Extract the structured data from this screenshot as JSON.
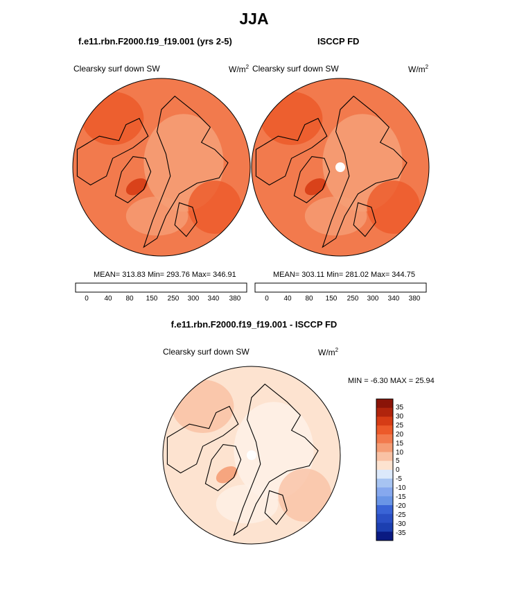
{
  "figure": {
    "season_title": "JJA",
    "left_panel_title": "f.e11.rbn.F2000.f19_f19.001 (yrs 2-5)",
    "right_panel_title": "ISCCP FD",
    "diff_panel_title": "f.e11.rbn.F2000.f19_f19.001 - ISCCP FD"
  },
  "chart_data": [
    {
      "type": "heatmap",
      "projection": "north-polar-stereographic",
      "title": "f.e11.rbn.F2000.f19_f19.001 (yrs 2-5)",
      "variable_label": "Clearsky surf down SW",
      "units_base": "W/m",
      "units_exp": "2",
      "stats": "MEAN= 313.83  Min= 293.76  Max= 346.91",
      "stats_values": {
        "mean": 313.83,
        "min": 293.76,
        "max": 346.91
      },
      "colorbar": {
        "orientation": "horizontal",
        "tick_labels": [
          "0",
          "40",
          "80",
          "150",
          "250",
          "300",
          "340",
          "380"
        ],
        "colors": [
          "#0a1a82",
          "#1c3fb0",
          "#3a64d6",
          "#6a95e6",
          "#a7c4f2",
          "#dce9fb",
          "#fde3d0",
          "#f9c2a5",
          "#f59d75",
          "#f27a4d",
          "#ec5a2a",
          "#d63c15",
          "#b0240c",
          "#8a1408"
        ]
      },
      "field_colors": {
        "base": "#f27a4d",
        "light": "#f59d75",
        "dark": "#ec5a2a",
        "darkest": "#d63c15"
      }
    },
    {
      "type": "heatmap",
      "projection": "north-polar-stereographic",
      "title": "ISCCP FD",
      "variable_label": "Clearsky surf down SW",
      "units_base": "W/m",
      "units_exp": "2",
      "stats": "MEAN= 303.11  Min= 281.02  Max= 344.75",
      "stats_values": {
        "mean": 303.11,
        "min": 281.02,
        "max": 344.75
      },
      "colorbar": {
        "orientation": "horizontal",
        "tick_labels": [
          "0",
          "40",
          "80",
          "150",
          "250",
          "300",
          "340",
          "380"
        ],
        "colors": [
          "#0a1a82",
          "#1c3fb0",
          "#3a64d6",
          "#6a95e6",
          "#a7c4f2",
          "#dce9fb",
          "#fde3d0",
          "#f9c2a5",
          "#f59d75",
          "#f27a4d",
          "#ec5a2a",
          "#d63c15",
          "#b0240c",
          "#8a1408"
        ]
      },
      "field_colors": {
        "base": "#f27a4d",
        "light": "#f59d75",
        "dark": "#ec5a2a",
        "darkest": "#d63c15"
      }
    },
    {
      "type": "heatmap",
      "projection": "north-polar-stereographic",
      "title": "f.e11.rbn.F2000.f19_f19.001 - ISCCP FD",
      "variable_label": "Clearsky surf down SW",
      "units_base": "W/m",
      "units_exp": "2",
      "stats": "MIN =  -6.30 MAX =  25.94",
      "stats_values": {
        "min": -6.3,
        "max": 25.94
      },
      "colorbar": {
        "orientation": "vertical",
        "tick_labels": [
          "35",
          "30",
          "25",
          "20",
          "15",
          "10",
          "5",
          "0",
          "-5",
          "-10",
          "-15",
          "-20",
          "-25",
          "-30",
          "-35"
        ],
        "colors": [
          "#8a1408",
          "#b0240c",
          "#d63c15",
          "#ec5a2a",
          "#f27a4d",
          "#f59d75",
          "#f9c2a5",
          "#fde3d0",
          "#dce9fb",
          "#a7c4f2",
          "#86a8ee",
          "#6a95e6",
          "#3a64d6",
          "#2a4fc4",
          "#1c3fb0",
          "#0a1a82"
        ]
      },
      "field_colors": {
        "base": "#fde3d0",
        "light": "#fef0e6",
        "dark": "#f9c2a5",
        "darkest": "#f59d75"
      }
    }
  ]
}
